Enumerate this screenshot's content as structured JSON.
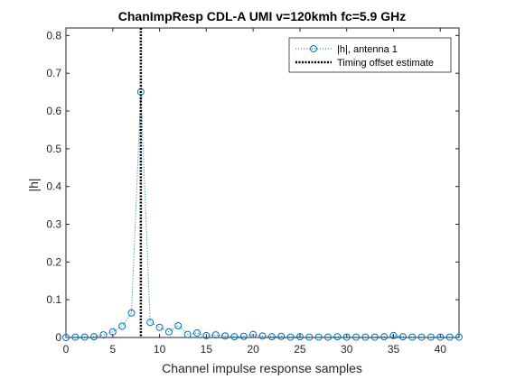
{
  "chart_data": {
    "type": "scatter",
    "title": "ChanImpResp CDL-A UMI v=120kmh fc=5.9 GHz",
    "xlabel": "Channel impulse response samples",
    "ylabel": "|h|",
    "xlim": [
      0,
      42
    ],
    "ylim": [
      0,
      0.82
    ],
    "xticks": [
      0,
      5,
      10,
      15,
      20,
      25,
      30,
      35,
      40
    ],
    "yticks": [
      0,
      0.1,
      0.2,
      0.3,
      0.4,
      0.5,
      0.6,
      0.7,
      0.8
    ],
    "grid": false,
    "legend_location": "top-right",
    "series": [
      {
        "name": "|h|, antenna 1",
        "style": "dotted line with circle markers",
        "color": "#0072BD",
        "x": [
          0,
          1,
          2,
          3,
          4,
          5,
          6,
          7,
          8,
          9,
          10,
          11,
          12,
          13,
          14,
          15,
          16,
          17,
          18,
          19,
          20,
          21,
          22,
          23,
          24,
          25,
          26,
          27,
          28,
          29,
          30,
          31,
          32,
          33,
          34,
          35,
          36,
          37,
          38,
          39,
          40,
          41,
          42
        ],
        "y": [
          0.0,
          0.001,
          0.001,
          0.002,
          0.007,
          0.015,
          0.03,
          0.065,
          0.651,
          0.04,
          0.027,
          0.015,
          0.031,
          0.008,
          0.012,
          0.005,
          0.007,
          0.004,
          0.002,
          0.003,
          0.008,
          0.004,
          0.002,
          0.003,
          0.001,
          0.002,
          0.001,
          0.001,
          0.001,
          0.002,
          0.001,
          0.001,
          0.001,
          0.001,
          0.002,
          0.005,
          0.002,
          0.001,
          0.001,
          0.001,
          0.001,
          0.001,
          0.001
        ]
      },
      {
        "name": "Timing offset estimate",
        "style": "dotted vertical line",
        "color": "#000000",
        "x": 8
      }
    ]
  }
}
